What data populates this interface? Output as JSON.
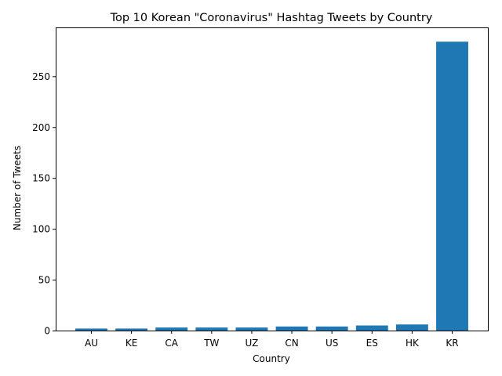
{
  "chart_data": {
    "type": "bar",
    "title": "Top 10 Korean \"Coronavirus\" Hashtag Tweets by Country",
    "xlabel": "Country",
    "ylabel": "Number of Tweets",
    "categories": [
      "AU",
      "KE",
      "CA",
      "TW",
      "UZ",
      "CN",
      "US",
      "ES",
      "HK",
      "KR"
    ],
    "values": [
      2,
      2,
      3,
      3,
      3,
      4,
      4,
      5,
      6,
      284
    ],
    "ylim": [
      0,
      298
    ],
    "yticks": [
      0,
      50,
      100,
      150,
      200,
      250
    ],
    "bar_color": "#1f77b4",
    "grid": false,
    "legend": "none"
  }
}
